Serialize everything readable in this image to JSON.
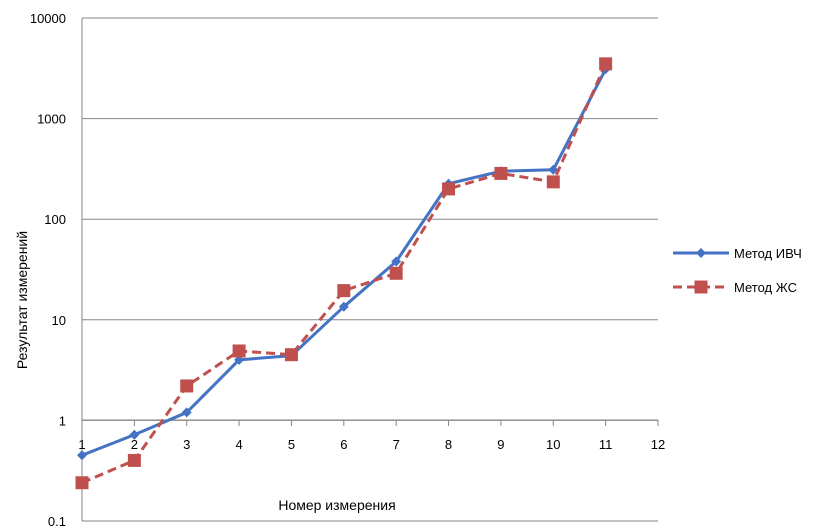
{
  "chart_data": {
    "type": "line",
    "xlabel": "Номер измерения",
    "ylabel": "Результат  измерений",
    "yscale": "log",
    "ylim": [
      0.1,
      10000
    ],
    "xlim": [
      1,
      12
    ],
    "yticks": [
      "0.1",
      "1",
      "10",
      "100",
      "1000",
      "10000"
    ],
    "xticks": [
      "1",
      "2",
      "3",
      "4",
      "5",
      "6",
      "7",
      "8",
      "9",
      "10",
      "11",
      "12"
    ],
    "grid": "horizontal",
    "legend": "right",
    "x": [
      1,
      2,
      3,
      4,
      5,
      6,
      7,
      8,
      9,
      10,
      11
    ],
    "series": [
      {
        "name": "Метод ИВЧ",
        "color": "#4472C4",
        "line_style": "solid",
        "marker": "diamond",
        "values": [
          0.45,
          0.72,
          1.2,
          4.0,
          4.4,
          13.5,
          38,
          225,
          300,
          310,
          3100
        ]
      },
      {
        "name": "Метод ЖС",
        "color": "#C0504D",
        "line_style": "dashed",
        "marker": "square",
        "values": [
          0.24,
          0.4,
          2.2,
          4.9,
          4.5,
          19.5,
          29,
          200,
          285,
          235,
          3500
        ]
      }
    ]
  }
}
